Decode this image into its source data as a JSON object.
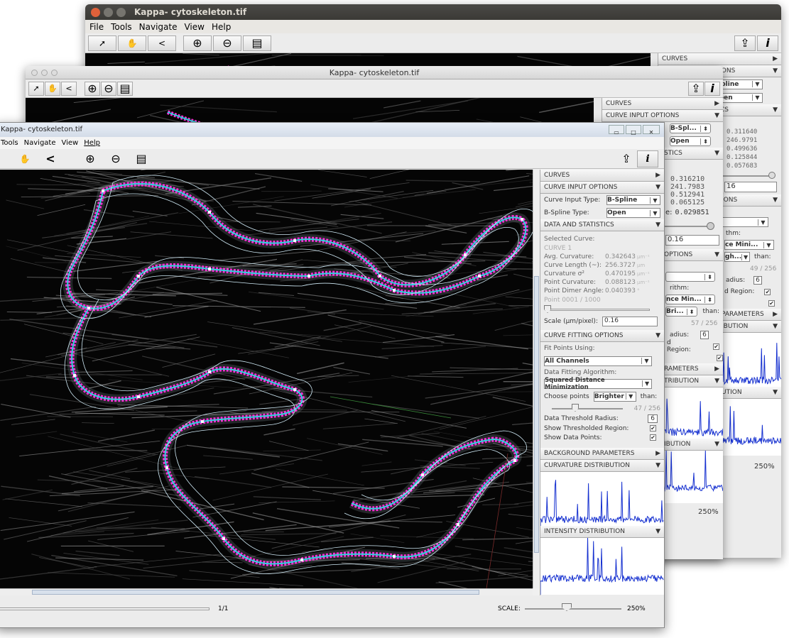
{
  "back": {
    "title": "Kappa- cytoskeleton.tif",
    "menu": [
      "File",
      "Tools",
      "Navigate",
      "View",
      "Help"
    ],
    "panel": {
      "curves": "CURVES",
      "input": "CURVE INPUT OPTIONS",
      "spline": "-Spline",
      "open": "Open",
      "stats": "CS",
      "values": [
        "0.311640",
        "246.9791",
        "0.499636",
        "0.125844",
        "0.057683"
      ],
      "scale": "16",
      "ions": "IONS",
      "thm": "thm:",
      "mini": "ce Mini...",
      "gh": "gh...",
      "than": "than:",
      "thr": "49 / 256",
      "adius": "adius:",
      "radius_val": "6",
      "dreg": "d Region:",
      "params": "PARAMETERS",
      "ibution": "IBUTION",
      "ution": "UTION",
      "zoom": "250%"
    }
  },
  "mid": {
    "title": "Kappa- cytoskeleton.tif",
    "panel": {
      "curves": "CURVES",
      "input": "CURVE INPUT OPTIONS",
      "bspl": "B-Spl...",
      "open": "Open",
      "stics": "STICS",
      "values": [
        "0.316210",
        "241.7983",
        "0.512941",
        "0.065125"
      ],
      "e_label": "e:",
      "e_val": "0.029851",
      "scale": "0.16",
      "options": "OPTIONS",
      "rithm": "rithm:",
      "mini": "nce Min...",
      "bri": "Bri...",
      "than": "than:",
      "thr": "57 / 256",
      "adius": "adius:",
      "radius_val": "6",
      "dreg": "d Region:",
      "params": "RAMETERS",
      "tribution": "TRIBUTION",
      "bution": "IBUTION",
      "zoom": "250%"
    }
  },
  "front": {
    "title": "Kappa- cytoskeleton.tif",
    "menu": [
      "Tools",
      "Navigate",
      "View",
      "Help"
    ],
    "panel": {
      "curves": "CURVES",
      "input": "CURVE INPUT OPTIONS",
      "input_type_label": "Curve Input Type:",
      "input_type": "B-Spline",
      "spline_type_label": "B-Spline Type:",
      "spline_type": "Open",
      "stats": "DATA AND STATISTICS",
      "selected_label": "Selected Curve:",
      "selected": "CURVE 1",
      "stats_rows": [
        {
          "label": "Avg. Curvature:",
          "value": "0.342643",
          "unit": "µm⁻¹"
        },
        {
          "label": "Curve Length (~):",
          "value": "256.3727",
          "unit": "µm"
        },
        {
          "label": "Curvature σ²",
          "value": "0.470195",
          "unit": "µm⁻¹"
        },
        {
          "label": "Point Curvature:",
          "value": "0.088123",
          "unit": "µm⁻¹"
        },
        {
          "label": "Point Dimer Angle:",
          "value": "0.040393",
          "unit": "°"
        }
      ],
      "point": "Point 0001 / 1000",
      "scale_label": "Scale (µm/pixel):",
      "scale": "0.16",
      "fitting": "CURVE FITTING OPTIONS",
      "fit_label": "Fit Points Using:",
      "fit": "All Channels",
      "algo_label": "Data Fitting Algorithm:",
      "algo": "Squared Distance Minimization",
      "choose_label": "Choose points",
      "choose": "Brighter",
      "than": "than:",
      "threshold": "47 / 256",
      "radius_label": "Data Threshold Radius:",
      "radius": "6",
      "show_region": "Show Thresholded Region:",
      "show_points": "Show Data Points:",
      "bg": "BACKGROUND PARAMETERS",
      "curv_dist": "CURVATURE DISTRIBUTION",
      "int_dist": "INTENSITY DISTRIBUTION"
    },
    "status": {
      "page": "1/1",
      "scale_label": "SCALE:",
      "zoom": "250%"
    }
  },
  "colors": {
    "curve": "#2fd3e0",
    "points": "#ff2bd6",
    "outline": "#cfe9f5",
    "hist": "#1530d0"
  }
}
